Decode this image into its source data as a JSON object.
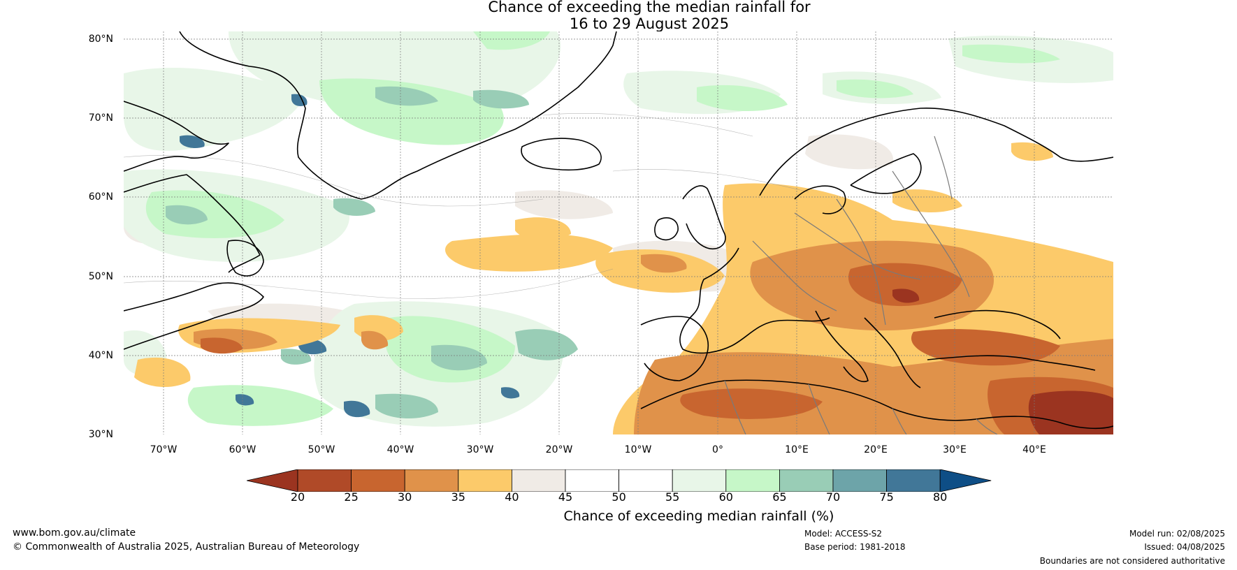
{
  "title": {
    "line1": "Chance of exceeding the median rainfall for",
    "line2": "16 to 29 August 2025"
  },
  "map": {
    "lat_labels": [
      "80°N",
      "70°N",
      "60°N",
      "50°N",
      "40°N",
      "30°N"
    ],
    "lon_labels": [
      "70°W",
      "60°W",
      "50°W",
      "40°W",
      "30°W",
      "20°W",
      "10°W",
      "0°",
      "10°E",
      "20°E",
      "30°E",
      "40°E"
    ],
    "extent": {
      "lon_min": -75,
      "lon_max": 50,
      "lat_min": 30,
      "lat_max": 81
    }
  },
  "colorbar": {
    "ticks": [
      "20",
      "25",
      "30",
      "35",
      "40",
      "45",
      "50",
      "55",
      "60",
      "65",
      "70",
      "75",
      "80"
    ],
    "colors": [
      "#9b3420",
      "#b04a28",
      "#c8652f",
      "#e0924a",
      "#fcca6a",
      "#f0ebe6",
      "#ffffff",
      "#ffffff",
      "#e8f6e8",
      "#c6f7c8",
      "#99cdb6",
      "#6da4a9",
      "#417798",
      "#0e4e86"
    ],
    "label": "Chance of exceeding median rainfall (%)"
  },
  "footer": {
    "website": "www.bom.gov.au/climate",
    "copyright": "© Commonwealth of Australia 2025, Australian Bureau of Meteorology",
    "model": "Model: ACCESS-S2",
    "base_period": "Base period: 1981-2018",
    "model_run": "Model run: 02/08/2025",
    "issued": "Issued: 04/08/2025",
    "disclaimer": "Boundaries are not considered authoritative"
  }
}
